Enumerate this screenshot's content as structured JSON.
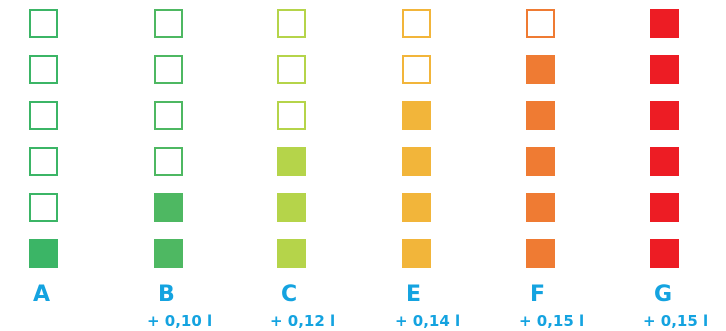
{
  "colors": {
    "label": "#14a3e0"
  },
  "columns": [
    {
      "letter": "A",
      "value": "",
      "filled": 1,
      "fill_color": "#3bb566",
      "outline_color": "#3bb566"
    },
    {
      "letter": "B",
      "value": "+ 0,10 l",
      "filled": 2,
      "fill_color": "#4eb862",
      "outline_color": "#4eb862"
    },
    {
      "letter": "C",
      "value": "+ 0,12 l",
      "filled": 3,
      "fill_color": "#b5d44a",
      "outline_color": "#b5d44a"
    },
    {
      "letter": "E",
      "value": "+ 0,14 l",
      "filled": 4,
      "fill_color": "#f2b53a",
      "outline_color": "#f2b53a"
    },
    {
      "letter": "F",
      "value": "+ 0,15 l",
      "filled": 5,
      "fill_color": "#ef7b33",
      "outline_color": "#ef7b33"
    },
    {
      "letter": "G",
      "value": "+ 0,15 l",
      "filled": 6,
      "fill_color": "#ed1c24",
      "outline_color": "#ed1c24"
    }
  ],
  "squares_per_column": 6
}
